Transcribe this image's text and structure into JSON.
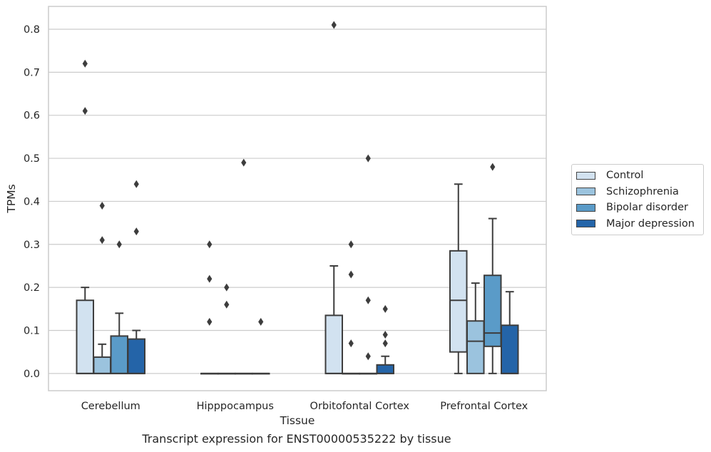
{
  "chart_data": {
    "type": "box",
    "caption": "Transcript expression for ENST00000535222 by tissue",
    "xlabel": "Tissue",
    "ylabel": "TPMs",
    "ylim": [
      -0.04,
      0.853
    ],
    "yticks": [
      0.0,
      0.1,
      0.2,
      0.3,
      0.4,
      0.5,
      0.6,
      0.7,
      0.8
    ],
    "ytick_labels": [
      "0.0",
      "0.1",
      "0.2",
      "0.3",
      "0.4",
      "0.5",
      "0.6",
      "0.7",
      "0.8"
    ],
    "grid": "horizontal",
    "legend_position": "right-center",
    "categories": [
      "Cerebellum",
      "Hipppocampus",
      "Orbitofontal Cortex",
      "Prefrontal Cortex"
    ],
    "series": [
      {
        "name": "Control",
        "color": "#d2e2f0",
        "boxes": [
          {
            "q1": 0.0,
            "median": 0.0,
            "q3": 0.17,
            "whisker_low": 0.0,
            "whisker_high": 0.2,
            "outliers": [
              0.61,
              0.72
            ]
          },
          {
            "q1": 0.0,
            "median": 0.0,
            "q3": 0.0,
            "whisker_low": 0.0,
            "whisker_high": 0.0,
            "outliers": [
              0.12,
              0.22,
              0.3
            ]
          },
          {
            "q1": 0.0,
            "median": 0.0,
            "q3": 0.135,
            "whisker_low": 0.0,
            "whisker_high": 0.25,
            "outliers": [
              0.81
            ]
          },
          {
            "q1": 0.05,
            "median": 0.17,
            "q3": 0.285,
            "whisker_low": 0.0,
            "whisker_high": 0.44,
            "outliers": []
          }
        ]
      },
      {
        "name": "Schizophrenia",
        "color": "#9bc3de",
        "boxes": [
          {
            "q1": 0.0,
            "median": 0.0,
            "q3": 0.038,
            "whisker_low": 0.0,
            "whisker_high": 0.068,
            "outliers": [
              0.31,
              0.39
            ]
          },
          {
            "q1": 0.0,
            "median": 0.0,
            "q3": 0.0,
            "whisker_low": 0.0,
            "whisker_high": 0.0,
            "outliers": [
              0.16,
              0.2
            ]
          },
          {
            "q1": 0.0,
            "median": 0.0,
            "q3": 0.0,
            "whisker_low": 0.0,
            "whisker_high": 0.0,
            "outliers": [
              0.07,
              0.23,
              0.3
            ]
          },
          {
            "q1": 0.0,
            "median": 0.075,
            "q3": 0.122,
            "whisker_low": 0.0,
            "whisker_high": 0.21,
            "outliers": []
          }
        ]
      },
      {
        "name": "Bipolar disorder",
        "color": "#5a9bc8",
        "boxes": [
          {
            "q1": 0.0,
            "median": 0.0,
            "q3": 0.087,
            "whisker_low": 0.0,
            "whisker_high": 0.14,
            "outliers": [
              0.3
            ]
          },
          {
            "q1": 0.0,
            "median": 0.0,
            "q3": 0.0,
            "whisker_low": 0.0,
            "whisker_high": 0.0,
            "outliers": [
              0.49
            ]
          },
          {
            "q1": 0.0,
            "median": 0.0,
            "q3": 0.0,
            "whisker_low": 0.0,
            "whisker_high": 0.0,
            "outliers": [
              0.04,
              0.17,
              0.5
            ]
          },
          {
            "q1": 0.063,
            "median": 0.094,
            "q3": 0.228,
            "whisker_low": 0.0,
            "whisker_high": 0.36,
            "outliers": [
              0.48
            ]
          }
        ]
      },
      {
        "name": "Major depression",
        "color": "#2464a8",
        "boxes": [
          {
            "q1": 0.0,
            "median": 0.0,
            "q3": 0.08,
            "whisker_low": 0.0,
            "whisker_high": 0.1,
            "outliers": [
              0.33,
              0.44
            ]
          },
          {
            "q1": 0.0,
            "median": 0.0,
            "q3": 0.0,
            "whisker_low": 0.0,
            "whisker_high": 0.0,
            "outliers": [
              0.12
            ]
          },
          {
            "q1": 0.0,
            "median": 0.0,
            "q3": 0.02,
            "whisker_low": 0.0,
            "whisker_high": 0.04,
            "outliers": [
              0.07,
              0.09,
              0.15
            ]
          },
          {
            "q1": 0.0,
            "median": 0.0,
            "q3": 0.112,
            "whisker_low": 0.0,
            "whisker_high": 0.19,
            "outliers": []
          }
        ]
      }
    ]
  }
}
